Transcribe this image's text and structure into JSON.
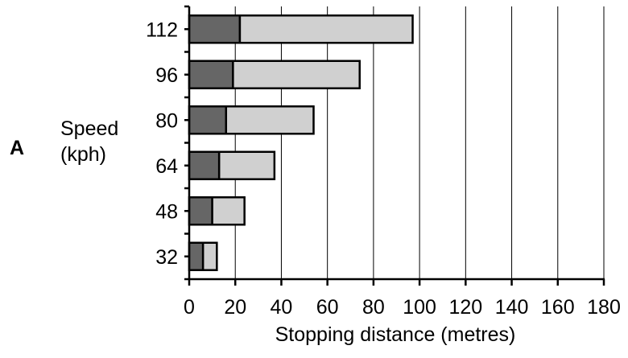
{
  "panel_label": "A",
  "chart_data": {
    "type": "bar",
    "orientation": "horizontal",
    "stacked": true,
    "categories": [
      "112",
      "96",
      "80",
      "64",
      "48",
      "32"
    ],
    "series": [
      {
        "values": [
          22,
          19,
          16,
          13,
          10,
          6
        ],
        "color": "#666666"
      },
      {
        "values": [
          75,
          55,
          38,
          24,
          14,
          6
        ],
        "color": "#d0d0d0"
      }
    ],
    "totals": [
      97,
      74,
      54,
      37,
      24,
      12
    ],
    "xlabel": "Stopping distance (metres)",
    "ylabel_lines": [
      "Speed",
      "(kph)"
    ],
    "xlim": [
      0,
      180
    ],
    "xticks": [
      0,
      20,
      40,
      60,
      80,
      100,
      120,
      140,
      160,
      180
    ],
    "grid": "vertical",
    "legend": "none"
  }
}
